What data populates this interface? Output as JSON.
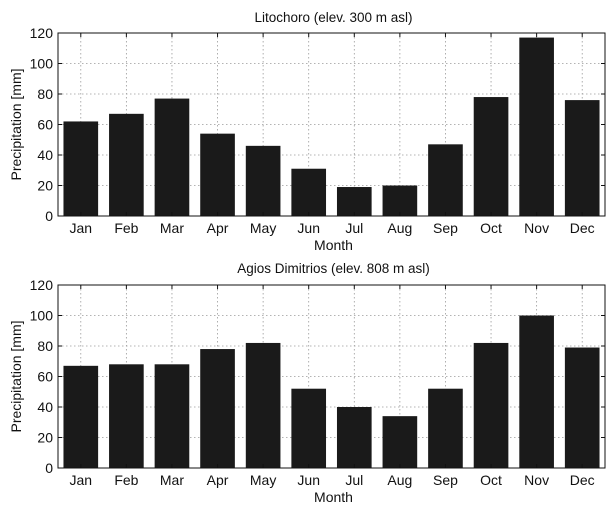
{
  "chart_data": [
    {
      "type": "bar",
      "title": "Litochoro (elev. 300 m asl)",
      "xlabel": "Month",
      "ylabel": "Precipitation [mm]",
      "categories": [
        "Jan",
        "Feb",
        "Mar",
        "Apr",
        "May",
        "Jun",
        "Jul",
        "Aug",
        "Sep",
        "Oct",
        "Nov",
        "Dec"
      ],
      "values": [
        62,
        67,
        77,
        54,
        46,
        31,
        19,
        20,
        47,
        78,
        117,
        76
      ],
      "ylim": [
        0,
        120
      ],
      "yticks": [
        0,
        20,
        40,
        60,
        80,
        100,
        120
      ],
      "grid": true,
      "bar_color": "#1a1a1a"
    },
    {
      "type": "bar",
      "title": "Agios Dimitrios (elev. 808 m asl)",
      "xlabel": "Month",
      "ylabel": "Precipitation [mm]",
      "categories": [
        "Jan",
        "Feb",
        "Mar",
        "Apr",
        "May",
        "Jun",
        "Jul",
        "Aug",
        "Sep",
        "Oct",
        "Nov",
        "Dec"
      ],
      "values": [
        67,
        68,
        68,
        78,
        82,
        52,
        40,
        34,
        52,
        82,
        100,
        79
      ],
      "ylim": [
        0,
        120
      ],
      "yticks": [
        0,
        20,
        40,
        60,
        80,
        100,
        120
      ],
      "grid": true,
      "bar_color": "#1a1a1a"
    }
  ]
}
